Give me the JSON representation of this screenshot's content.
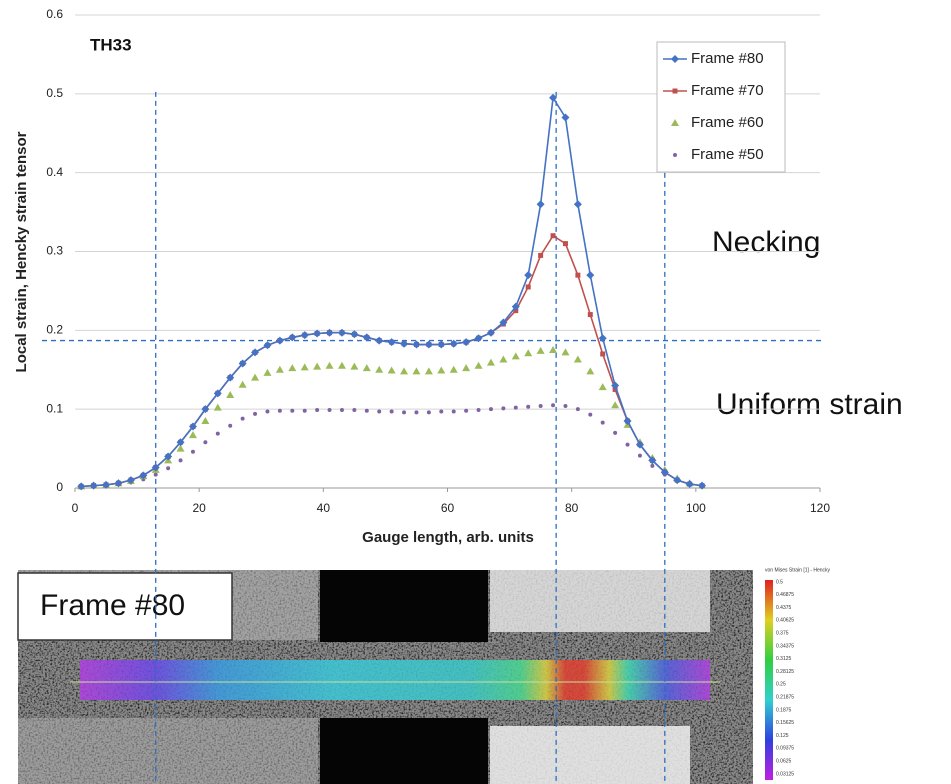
{
  "chart_data": {
    "type": "line",
    "title": "TH33",
    "x_label": "Gauge length, arb. units",
    "y_label": "Local strain, Hencky strain tensor",
    "xlim": [
      0,
      120
    ],
    "xticks": [
      0,
      20,
      40,
      60,
      80,
      100,
      120
    ],
    "ylim": [
      0,
      0.6
    ],
    "yticks": [
      0,
      0.1,
      0.2,
      0.3,
      0.4,
      0.5,
      0.6
    ],
    "grid": true,
    "legend": "upper right",
    "x": [
      1,
      3,
      5,
      7,
      9,
      11,
      13,
      15,
      17,
      19,
      21,
      23,
      25,
      27,
      29,
      31,
      33,
      35,
      37,
      39,
      41,
      43,
      45,
      47,
      49,
      51,
      53,
      55,
      57,
      59,
      61,
      63,
      65,
      67,
      69,
      71,
      73,
      75,
      77,
      79,
      81,
      83,
      85,
      87,
      89,
      91,
      93,
      95,
      97,
      99,
      101
    ],
    "series": [
      {
        "name": "Frame #80",
        "color": "#4472c4",
        "marker": "diamond",
        "line": true,
        "values": [
          0.002,
          0.003,
          0.004,
          0.006,
          0.01,
          0.016,
          0.026,
          0.04,
          0.058,
          0.078,
          0.1,
          0.12,
          0.14,
          0.158,
          0.172,
          0.181,
          0.187,
          0.191,
          0.194,
          0.196,
          0.197,
          0.197,
          0.195,
          0.191,
          0.187,
          0.185,
          0.183,
          0.182,
          0.182,
          0.182,
          0.183,
          0.185,
          0.19,
          0.197,
          0.21,
          0.23,
          0.27,
          0.36,
          0.495,
          0.47,
          0.36,
          0.27,
          0.19,
          0.13,
          0.085,
          0.055,
          0.035,
          0.02,
          0.01,
          0.005,
          0.003
        ]
      },
      {
        "name": "Frame #70",
        "color": "#c0504d",
        "marker": "square",
        "line": true,
        "values": [
          0.002,
          0.003,
          0.004,
          0.006,
          0.01,
          0.016,
          0.026,
          0.04,
          0.058,
          0.078,
          0.1,
          0.12,
          0.14,
          0.158,
          0.172,
          0.181,
          0.187,
          0.191,
          0.194,
          0.196,
          0.197,
          0.197,
          0.195,
          0.191,
          0.187,
          0.185,
          0.183,
          0.182,
          0.182,
          0.182,
          0.183,
          0.185,
          0.19,
          0.197,
          0.208,
          0.225,
          0.255,
          0.295,
          0.32,
          0.31,
          0.27,
          0.22,
          0.17,
          0.125,
          0.085,
          0.055,
          0.035,
          0.02,
          0.01,
          0.005,
          0.003
        ]
      },
      {
        "name": "Frame #60",
        "color": "#9bbb59",
        "marker": "triangle",
        "line": false,
        "values": [
          0.002,
          0.003,
          0.004,
          0.006,
          0.009,
          0.015,
          0.023,
          0.035,
          0.05,
          0.067,
          0.085,
          0.102,
          0.118,
          0.131,
          0.14,
          0.146,
          0.15,
          0.152,
          0.153,
          0.154,
          0.155,
          0.155,
          0.154,
          0.152,
          0.15,
          0.149,
          0.148,
          0.148,
          0.148,
          0.149,
          0.15,
          0.152,
          0.155,
          0.159,
          0.163,
          0.167,
          0.171,
          0.174,
          0.175,
          0.172,
          0.163,
          0.148,
          0.128,
          0.105,
          0.08,
          0.058,
          0.038,
          0.023,
          0.012,
          0.006,
          0.003
        ]
      },
      {
        "name": "Frame #50",
        "color": "#8064a2",
        "marker": "circle",
        "line": false,
        "values": [
          0.002,
          0.003,
          0.003,
          0.005,
          0.007,
          0.011,
          0.017,
          0.025,
          0.035,
          0.046,
          0.058,
          0.069,
          0.079,
          0.088,
          0.094,
          0.097,
          0.098,
          0.098,
          0.098,
          0.099,
          0.099,
          0.099,
          0.099,
          0.098,
          0.097,
          0.097,
          0.096,
          0.096,
          0.096,
          0.097,
          0.097,
          0.098,
          0.099,
          0.1,
          0.101,
          0.102,
          0.103,
          0.104,
          0.105,
          0.104,
          0.1,
          0.093,
          0.083,
          0.07,
          0.055,
          0.041,
          0.028,
          0.017,
          0.01,
          0.005,
          0.003
        ]
      }
    ],
    "reference_lines": {
      "x": [
        13,
        77.5,
        95
      ],
      "y": [
        0.187
      ]
    },
    "annotations": [
      "Necking",
      "Uniform strain"
    ]
  },
  "image": {
    "label": "Frame #80",
    "colorbar": {
      "title": "von Mises Strain [1] - Hencky",
      "ticks": [
        0.5,
        0.46875,
        0.4375,
        0.40625,
        0.375,
        0.34375,
        0.3125,
        0.28125,
        0.25,
        0.21875,
        0.1875,
        0.15625,
        0.125,
        0.09375,
        0.0625,
        0.03125
      ]
    }
  }
}
